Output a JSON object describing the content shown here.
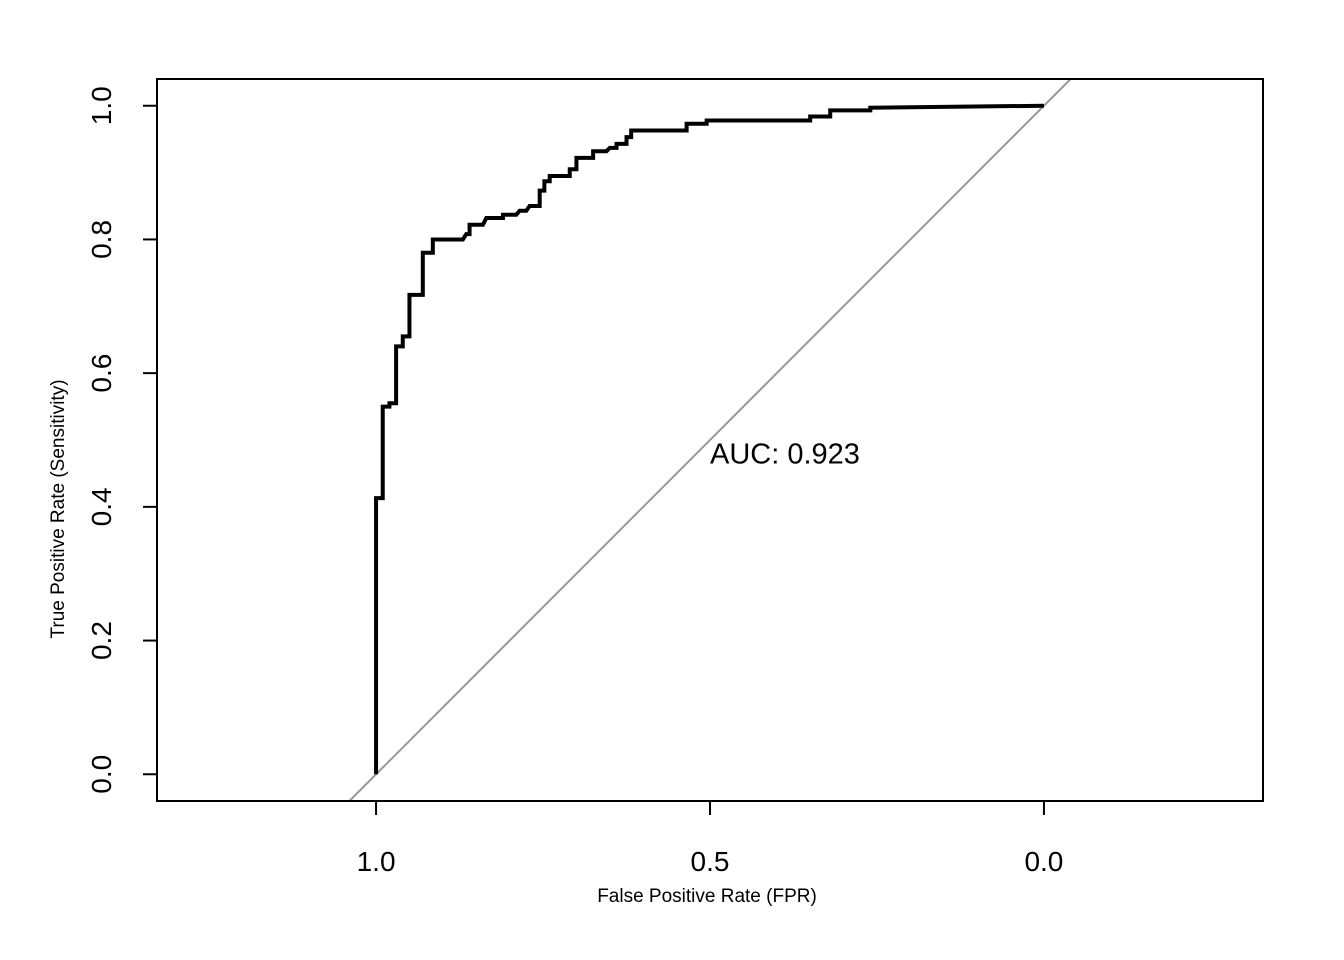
{
  "chart_data": {
    "type": "line",
    "title": "",
    "xlabel": "False Positive Rate (FPR)",
    "ylabel": "True Positive Rate (Sensitivity)",
    "x_axis_reversed": true,
    "xlim": [
      1.328,
      -0.328
    ],
    "ylim": [
      -0.04,
      1.04
    ],
    "grid": false,
    "legend": "none",
    "x_ticks": [
      {
        "value": 1.0,
        "label": "1.0"
      },
      {
        "value": 0.5,
        "label": "0.5"
      },
      {
        "value": 0.0,
        "label": "0.0"
      }
    ],
    "y_ticks": [
      {
        "value": 0.0,
        "label": "0.0"
      },
      {
        "value": 0.2,
        "label": "0.2"
      },
      {
        "value": 0.4,
        "label": "0.4"
      },
      {
        "value": 0.6,
        "label": "0.6"
      },
      {
        "value": 0.8,
        "label": "0.8"
      },
      {
        "value": 1.0,
        "label": "1.0"
      }
    ],
    "annotation": {
      "text": "AUC: 0.923",
      "x": 0.5,
      "y": 0.48
    },
    "reference_line": {
      "color": "#999999",
      "from": [
        1.04,
        -0.04
      ],
      "to": [
        -0.04,
        1.04
      ]
    },
    "series": [
      {
        "color": "#000000",
        "points": [
          [
            1.0,
            0.0
          ],
          [
            1.0,
            0.413
          ],
          [
            0.99,
            0.413
          ],
          [
            0.99,
            0.55
          ],
          [
            0.98,
            0.55
          ],
          [
            0.98,
            0.555
          ],
          [
            0.97,
            0.555
          ],
          [
            0.97,
            0.64
          ],
          [
            0.96,
            0.64
          ],
          [
            0.96,
            0.655
          ],
          [
            0.95,
            0.655
          ],
          [
            0.95,
            0.717
          ],
          [
            0.93,
            0.717
          ],
          [
            0.93,
            0.78
          ],
          [
            0.915,
            0.78
          ],
          [
            0.915,
            0.8
          ],
          [
            0.87,
            0.8
          ],
          [
            0.865,
            0.808
          ],
          [
            0.86,
            0.808
          ],
          [
            0.86,
            0.822
          ],
          [
            0.84,
            0.822
          ],
          [
            0.835,
            0.832
          ],
          [
            0.81,
            0.832
          ],
          [
            0.81,
            0.837
          ],
          [
            0.79,
            0.837
          ],
          [
            0.785,
            0.843
          ],
          [
            0.775,
            0.843
          ],
          [
            0.77,
            0.85
          ],
          [
            0.755,
            0.85
          ],
          [
            0.755,
            0.873
          ],
          [
            0.748,
            0.873
          ],
          [
            0.748,
            0.887
          ],
          [
            0.74,
            0.887
          ],
          [
            0.74,
            0.895
          ],
          [
            0.71,
            0.895
          ],
          [
            0.71,
            0.905
          ],
          [
            0.7,
            0.905
          ],
          [
            0.7,
            0.922
          ],
          [
            0.675,
            0.922
          ],
          [
            0.675,
            0.932
          ],
          [
            0.655,
            0.932
          ],
          [
            0.65,
            0.937
          ],
          [
            0.64,
            0.937
          ],
          [
            0.64,
            0.943
          ],
          [
            0.625,
            0.943
          ],
          [
            0.625,
            0.953
          ],
          [
            0.618,
            0.953
          ],
          [
            0.618,
            0.963
          ],
          [
            0.535,
            0.963
          ],
          [
            0.535,
            0.973
          ],
          [
            0.505,
            0.973
          ],
          [
            0.505,
            0.978
          ],
          [
            0.35,
            0.978
          ],
          [
            0.35,
            0.984
          ],
          [
            0.32,
            0.984
          ],
          [
            0.32,
            0.993
          ],
          [
            0.26,
            0.993
          ],
          [
            0.26,
            0.997
          ],
          [
            0.0,
            1.0
          ]
        ]
      }
    ]
  }
}
